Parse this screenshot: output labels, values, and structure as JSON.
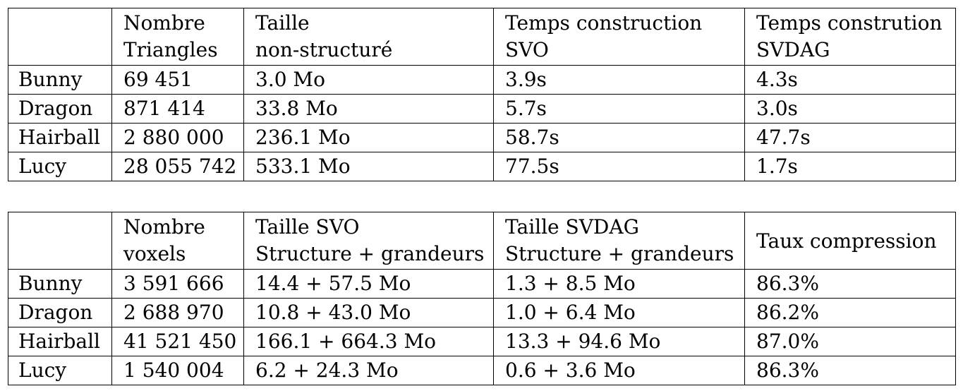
{
  "table_one": {
    "header": [
      {
        "line1": "",
        "line2": ""
      },
      {
        "line1": "Nombre",
        "line2": "Triangles"
      },
      {
        "line1": "Taille",
        "line2": "non-structuré"
      },
      {
        "line1": "Temps construction",
        "line2": "SVO"
      },
      {
        "line1": "Temps constrution",
        "line2": "SVDAG"
      }
    ],
    "rows": [
      {
        "name": "Bunny",
        "triangles": "69 451",
        "size": "3.0 Mo",
        "svo_time": "3.9s",
        "svdag_time": "4.3s"
      },
      {
        "name": "Dragon",
        "triangles": "871 414",
        "size": "33.8 Mo",
        "svo_time": "5.7s",
        "svdag_time": "3.0s"
      },
      {
        "name": "Hairball",
        "triangles": "2 880 000",
        "size": "236.1 Mo",
        "svo_time": "58.7s",
        "svdag_time": "47.7s"
      },
      {
        "name": "Lucy",
        "triangles": "28 055 742",
        "size": "533.1 Mo",
        "svo_time": "77.5s",
        "svdag_time": "1.7s"
      }
    ]
  },
  "table_two": {
    "header": [
      {
        "line1": "",
        "line2": ""
      },
      {
        "line1": "Nombre",
        "line2": "voxels"
      },
      {
        "line1": "Taille SVO",
        "line2": "Structure + grandeurs"
      },
      {
        "line1": "Taille SVDAG",
        "line2": "Structure + grandeurs"
      },
      {
        "line1": "Taux compression",
        "line2": ""
      }
    ],
    "rows": [
      {
        "name": "Bunny",
        "voxels": "3 591 666",
        "svo_size": "14.4 + 57.5 Mo",
        "svdag_size": "1.3 + 8.5 Mo",
        "compression": "86.3%"
      },
      {
        "name": "Dragon",
        "voxels": "2 688 970",
        "svo_size": "10.8 + 43.0 Mo",
        "svdag_size": "1.0 + 6.4 Mo",
        "compression": "86.2%"
      },
      {
        "name": "Hairball",
        "voxels": "41 521 450",
        "svo_size": "166.1 + 664.3 Mo",
        "svdag_size": "13.3 + 94.6 Mo",
        "compression": "87.0%"
      },
      {
        "name": "Lucy",
        "voxels": "1 540 004",
        "svo_size": "6.2 + 24.3 Mo",
        "svdag_size": "0.6 + 3.6 Mo",
        "compression": "86.3%"
      }
    ]
  }
}
